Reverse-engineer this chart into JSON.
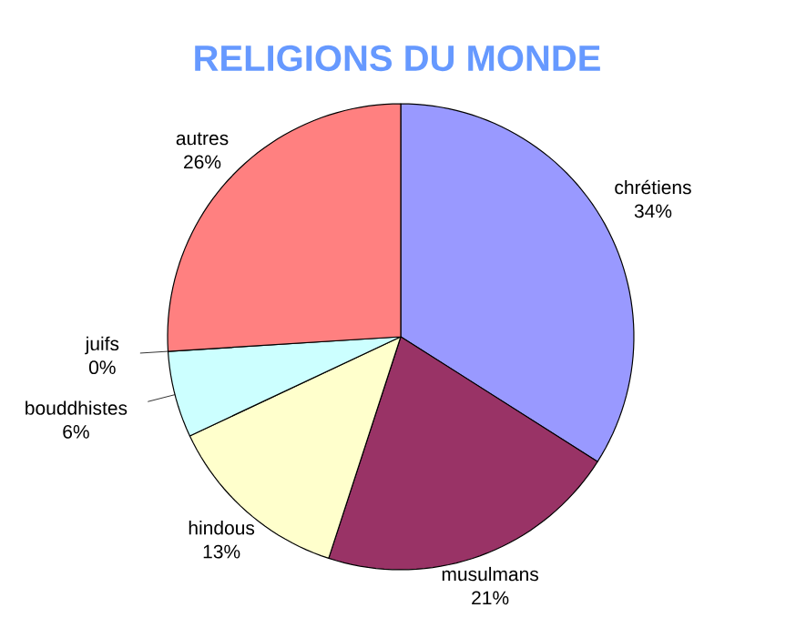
{
  "chart_data": {
    "type": "pie",
    "title": "RELIGIONS DU MONDE",
    "categories": [
      "chrétiens",
      "musulmans",
      "hindous",
      "bouddhistes",
      "juifs",
      "autres"
    ],
    "values": [
      34,
      21,
      13,
      6,
      0,
      26
    ],
    "value_labels": [
      "34%",
      "21%",
      "13%",
      "6%",
      "0%",
      "26%"
    ],
    "colors": [
      "#9999ff",
      "#993366",
      "#ffffcc",
      "#ccffff",
      "#660066",
      "#ff8080"
    ]
  }
}
